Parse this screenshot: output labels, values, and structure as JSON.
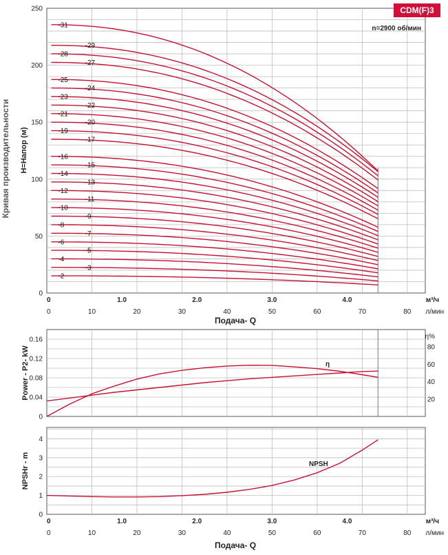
{
  "header": {
    "model_badge": "CDM(F)3",
    "speed_note": "n=2900 об/мин",
    "side_title": "Кривая производительности"
  },
  "colors": {
    "curve": "#c8102e",
    "badge": "#d0103a",
    "grid": "#bdbdbd"
  },
  "chart_data": [
    {
      "type": "line",
      "id": "head",
      "ylabel": "H=Напор (м)",
      "xlabel": "Подача- Q",
      "xlim": [
        0,
        84
      ],
      "ylim": [
        0,
        250
      ],
      "yticks": [
        0,
        50,
        100,
        150,
        200,
        250
      ],
      "xticks_m3h": [
        "0",
        "1.0",
        "2.0",
        "3.0",
        "4.0"
      ],
      "unit_m3h": "м³/ч",
      "xticks_lmin": [
        "0",
        "10",
        "20",
        "30",
        "40",
        "50",
        "60",
        "70",
        "80"
      ],
      "unit_lmin": "л/мин",
      "q_max": 73.5,
      "stages": [
        {
          "label": "-2",
          "h0": 15.1
        },
        {
          "label": "-3",
          "h0": 22.5
        },
        {
          "label": "-4",
          "h0": 30.0
        },
        {
          "label": "-5",
          "h0": 37.5
        },
        {
          "label": "-6",
          "h0": 44.9
        },
        {
          "label": "-7",
          "h0": 52.5
        },
        {
          "label": "-8",
          "h0": 60.0
        },
        {
          "label": "-9",
          "h0": 67.5
        },
        {
          "label": "-10",
          "h0": 75.0
        },
        {
          "label": "-11",
          "h0": 82.5
        },
        {
          "label": "-12",
          "h0": 90.0
        },
        {
          "label": "-13",
          "h0": 97.5
        },
        {
          "label": "-14",
          "h0": 105.0
        },
        {
          "label": "-15",
          "h0": 112.5
        },
        {
          "label": "-16",
          "h0": 120.0
        },
        {
          "label": "-17",
          "h0": 135.0
        },
        {
          "label": "-19",
          "h0": 142.5
        },
        {
          "label": "-20",
          "h0": 150.0
        },
        {
          "label": "-21",
          "h0": 157.5
        },
        {
          "label": "-22",
          "h0": 165.0
        },
        {
          "label": "-23",
          "h0": 172.5
        },
        {
          "label": "-24",
          "h0": 180.0
        },
        {
          "label": "-25",
          "h0": 187.5
        },
        {
          "label": "-27",
          "h0": 202.5
        },
        {
          "label": "-28",
          "h0": 210.0
        },
        {
          "label": "-29",
          "h0": 217.5
        },
        {
          "label": "-31",
          "h0": 235.6
        }
      ]
    },
    {
      "type": "line",
      "id": "power",
      "ylabel": "Power - P2- kW",
      "y2label": "η%",
      "xlim": [
        0,
        84
      ],
      "ylim": [
        0,
        0.18
      ],
      "yticks": [
        "0",
        "0.04",
        "0.08",
        "0.12",
        "0.16"
      ],
      "y2lim": [
        0,
        100
      ],
      "y2ticks": [
        "20",
        "40",
        "60",
        "80"
      ],
      "series": [
        {
          "name": "η",
          "axis": "right",
          "x": [
            0,
            5,
            10,
            15,
            20,
            25,
            30,
            35,
            40,
            45,
            50,
            55,
            60,
            65,
            70,
            73.5
          ],
          "y": [
            0,
            14,
            26,
            35,
            43,
            49,
            53,
            56,
            58,
            59,
            58.8,
            57,
            55,
            52,
            48,
            45
          ]
        },
        {
          "name": "",
          "axis": "left",
          "x": [
            0,
            5,
            10,
            15,
            20,
            25,
            30,
            35,
            40,
            45,
            50,
            55,
            60,
            65,
            70,
            73.5
          ],
          "y": [
            0.032,
            0.038,
            0.044,
            0.05,
            0.055,
            0.06,
            0.065,
            0.07,
            0.074,
            0.078,
            0.081,
            0.084,
            0.087,
            0.09,
            0.093,
            0.094
          ]
        }
      ]
    },
    {
      "type": "line",
      "id": "npsh",
      "ylabel": "NPSHr - m",
      "xlabel": "Подача- Q",
      "xlim": [
        0,
        84
      ],
      "ylim": [
        0,
        4.6
      ],
      "yticks": [
        "0",
        "1",
        "2",
        "3",
        "4"
      ],
      "xticks_m3h": [
        "0",
        "1.0",
        "2.0",
        "3.0",
        "4.0"
      ],
      "unit_m3h": "м³/ч",
      "xticks_lmin": [
        "0",
        "10",
        "20",
        "30",
        "40",
        "50",
        "60",
        "70",
        "80"
      ],
      "unit_lmin": "л/мин",
      "series": [
        {
          "name": "NPSH",
          "x": [
            0,
            5,
            10,
            15,
            20,
            25,
            30,
            35,
            40,
            45,
            50,
            55,
            60,
            65,
            70,
            73.5
          ],
          "y": [
            1.0,
            0.97,
            0.94,
            0.92,
            0.92,
            0.94,
            0.99,
            1.06,
            1.17,
            1.32,
            1.53,
            1.82,
            2.2,
            2.7,
            3.4,
            3.95
          ]
        }
      ]
    }
  ]
}
